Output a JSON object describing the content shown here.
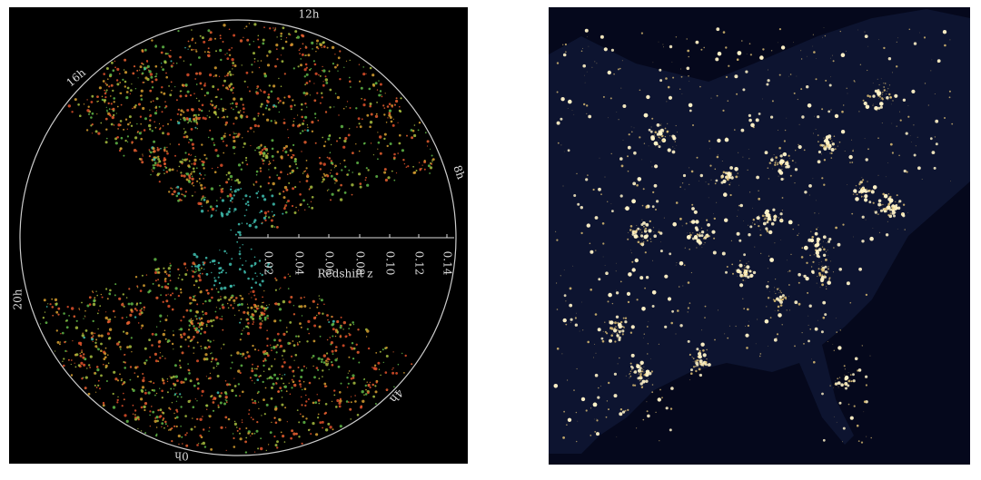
{
  "left_image": {
    "hour_labels": [
      "12h",
      "8h",
      "4h",
      "0h",
      "20h",
      "16h"
    ],
    "redshift_ticks": [
      "0.02",
      "0.04",
      "0.06",
      "0.08",
      "0.10",
      "0.12",
      "0.14"
    ],
    "axis_label": "Redshift z"
  },
  "right_image": {}
}
